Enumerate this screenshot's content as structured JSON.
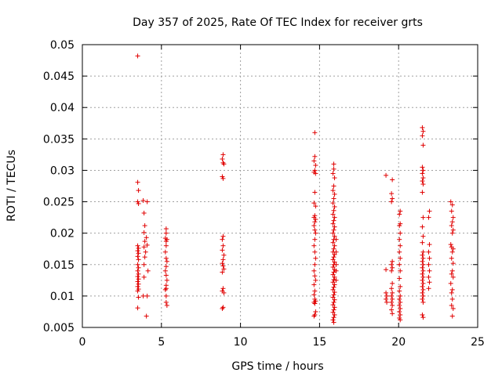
{
  "chart_data": {
    "type": "scatter",
    "title": "Day 357 of 2025, Rate Of TEC Index for receiver grts",
    "xlabel": "GPS time / hours",
    "ylabel": "ROTI / TECUs",
    "xlim": [
      0,
      25
    ],
    "ylim": [
      0.005,
      0.05
    ],
    "xticks": [
      "0",
      "5",
      "10",
      "15",
      "20",
      "25"
    ],
    "yticks": [
      "0.005",
      "0.01",
      "0.015",
      "0.02",
      "0.025",
      "0.03",
      "0.035",
      "0.04",
      "0.045",
      "0.05"
    ],
    "grid": true,
    "marker": "plus",
    "color": "#e00000",
    "series": [
      {
        "points": [
          [
            3.5,
            0.0482
          ],
          [
            3.5,
            0.0281
          ],
          [
            3.55,
            0.0268
          ],
          [
            3.5,
            0.025
          ],
          [
            3.55,
            0.0247
          ],
          [
            3.5,
            0.018
          ],
          [
            3.55,
            0.0176
          ],
          [
            3.5,
            0.0172
          ],
          [
            3.55,
            0.0168
          ],
          [
            3.5,
            0.0163
          ],
          [
            3.55,
            0.0158
          ],
          [
            3.5,
            0.015
          ],
          [
            3.55,
            0.0145
          ],
          [
            3.5,
            0.014
          ],
          [
            3.55,
            0.0135
          ],
          [
            3.5,
            0.0131
          ],
          [
            3.55,
            0.0127
          ],
          [
            3.5,
            0.0123
          ],
          [
            3.55,
            0.0119
          ],
          [
            3.5,
            0.0115
          ],
          [
            3.55,
            0.0111
          ],
          [
            3.5,
            0.0108
          ],
          [
            3.55,
            0.0098
          ],
          [
            3.5,
            0.0081
          ],
          [
            3.85,
            0.0252
          ],
          [
            4.1,
            0.025
          ],
          [
            3.9,
            0.0232
          ],
          [
            3.95,
            0.0212
          ],
          [
            3.9,
            0.0201
          ],
          [
            4.05,
            0.0193
          ],
          [
            3.95,
            0.0187
          ],
          [
            4.1,
            0.0181
          ],
          [
            3.9,
            0.0178
          ],
          [
            4.0,
            0.017
          ],
          [
            3.95,
            0.0162
          ],
          [
            3.9,
            0.015
          ],
          [
            4.15,
            0.014
          ],
          [
            3.9,
            0.013
          ],
          [
            3.85,
            0.01
          ],
          [
            4.1,
            0.01
          ],
          [
            4.05,
            0.0068
          ],
          [
            5.3,
            0.0207
          ],
          [
            5.3,
            0.02
          ],
          [
            5.25,
            0.0192
          ],
          [
            5.35,
            0.019
          ],
          [
            5.3,
            0.0187
          ],
          [
            5.3,
            0.018
          ],
          [
            5.25,
            0.017
          ],
          [
            5.3,
            0.016
          ],
          [
            5.35,
            0.0155
          ],
          [
            5.3,
            0.0147
          ],
          [
            5.25,
            0.014
          ],
          [
            5.3,
            0.0133
          ],
          [
            5.35,
            0.0125
          ],
          [
            5.3,
            0.0117
          ],
          [
            5.3,
            0.0112
          ],
          [
            5.25,
            0.011
          ],
          [
            5.3,
            0.01
          ],
          [
            5.3,
            0.009
          ],
          [
            5.35,
            0.0085
          ],
          [
            8.9,
            0.0325
          ],
          [
            8.85,
            0.0318
          ],
          [
            8.9,
            0.0312
          ],
          [
            8.95,
            0.031
          ],
          [
            8.85,
            0.029
          ],
          [
            8.9,
            0.0287
          ],
          [
            8.9,
            0.0195
          ],
          [
            8.85,
            0.019
          ],
          [
            8.9,
            0.018
          ],
          [
            8.85,
            0.0173
          ],
          [
            8.95,
            0.0165
          ],
          [
            8.9,
            0.0158
          ],
          [
            8.85,
            0.0152
          ],
          [
            8.9,
            0.0148
          ],
          [
            8.95,
            0.0143
          ],
          [
            8.85,
            0.0138
          ],
          [
            8.9,
            0.0112
          ],
          [
            8.85,
            0.0108
          ],
          [
            8.95,
            0.0105
          ],
          [
            8.9,
            0.0082
          ],
          [
            8.85,
            0.008
          ],
          [
            14.7,
            0.036
          ],
          [
            14.7,
            0.0322
          ],
          [
            14.65,
            0.0315
          ],
          [
            14.75,
            0.0308
          ],
          [
            14.7,
            0.03
          ],
          [
            14.65,
            0.0297
          ],
          [
            14.75,
            0.0295
          ],
          [
            14.7,
            0.0265
          ],
          [
            14.65,
            0.0248
          ],
          [
            14.75,
            0.0243
          ],
          [
            14.7,
            0.0228
          ],
          [
            14.65,
            0.0225
          ],
          [
            14.75,
            0.0222
          ],
          [
            14.7,
            0.0218
          ],
          [
            14.65,
            0.0212
          ],
          [
            14.7,
            0.0205
          ],
          [
            14.75,
            0.02
          ],
          [
            14.7,
            0.019
          ],
          [
            14.65,
            0.018
          ],
          [
            14.7,
            0.017
          ],
          [
            14.75,
            0.016
          ],
          [
            14.7,
            0.015
          ],
          [
            14.65,
            0.014
          ],
          [
            14.7,
            0.0132
          ],
          [
            14.75,
            0.0125
          ],
          [
            14.65,
            0.0118
          ],
          [
            14.7,
            0.0108
          ],
          [
            14.65,
            0.0102
          ],
          [
            14.7,
            0.0095
          ],
          [
            14.75,
            0.0092
          ],
          [
            14.65,
            0.009
          ],
          [
            14.7,
            0.0088
          ],
          [
            14.75,
            0.0075
          ],
          [
            14.7,
            0.007
          ],
          [
            14.65,
            0.0068
          ],
          [
            15.9,
            0.031
          ],
          [
            15.9,
            0.0302
          ],
          [
            15.85,
            0.0295
          ],
          [
            15.95,
            0.0288
          ],
          [
            15.9,
            0.0275
          ],
          [
            15.85,
            0.0268
          ],
          [
            15.95,
            0.0262
          ],
          [
            15.9,
            0.0255
          ],
          [
            15.85,
            0.0248
          ],
          [
            15.95,
            0.0242
          ],
          [
            15.9,
            0.0236
          ],
          [
            15.85,
            0.023
          ],
          [
            15.95,
            0.0225
          ],
          [
            15.9,
            0.022
          ],
          [
            15.85,
            0.0215
          ],
          [
            15.95,
            0.021
          ],
          [
            15.9,
            0.0205
          ],
          [
            15.85,
            0.02
          ],
          [
            15.95,
            0.0195
          ],
          [
            15.9,
            0.019
          ],
          [
            15.85,
            0.0185
          ],
          [
            15.95,
            0.018
          ],
          [
            15.9,
            0.0175
          ],
          [
            15.85,
            0.017
          ],
          [
            15.95,
            0.0166
          ],
          [
            15.9,
            0.0162
          ],
          [
            15.85,
            0.0158
          ],
          [
            15.95,
            0.0154
          ],
          [
            15.9,
            0.015
          ],
          [
            15.85,
            0.0146
          ],
          [
            15.95,
            0.0142
          ],
          [
            15.9,
            0.0138
          ],
          [
            15.85,
            0.0134
          ],
          [
            15.95,
            0.013
          ],
          [
            15.9,
            0.0126
          ],
          [
            15.85,
            0.0122
          ],
          [
            15.95,
            0.0118
          ],
          [
            15.9,
            0.0114
          ],
          [
            15.85,
            0.011
          ],
          [
            15.95,
            0.0106
          ],
          [
            15.9,
            0.0102
          ],
          [
            15.85,
            0.0098
          ],
          [
            15.95,
            0.0094
          ],
          [
            15.9,
            0.009
          ],
          [
            15.85,
            0.0086
          ],
          [
            15.95,
            0.0082
          ],
          [
            15.9,
            0.0078
          ],
          [
            15.85,
            0.0074
          ],
          [
            15.95,
            0.007
          ],
          [
            15.9,
            0.0066
          ],
          [
            15.85,
            0.0062
          ],
          [
            15.9,
            0.0058
          ],
          [
            16.05,
            0.019
          ],
          [
            16.05,
            0.017
          ],
          [
            16.05,
            0.015
          ],
          [
            16.05,
            0.014
          ],
          [
            16.05,
            0.0125
          ],
          [
            19.2,
            0.0292
          ],
          [
            19.2,
            0.0142
          ],
          [
            19.2,
            0.0105
          ],
          [
            19.25,
            0.01
          ],
          [
            19.2,
            0.0095
          ],
          [
            19.25,
            0.009
          ],
          [
            19.6,
            0.0285
          ],
          [
            19.55,
            0.0263
          ],
          [
            19.6,
            0.0255
          ],
          [
            19.55,
            0.025
          ],
          [
            19.6,
            0.0155
          ],
          [
            19.55,
            0.015
          ],
          [
            19.6,
            0.0145
          ],
          [
            19.55,
            0.014
          ],
          [
            19.6,
            0.012
          ],
          [
            19.55,
            0.0112
          ],
          [
            19.6,
            0.0105
          ],
          [
            19.55,
            0.01
          ],
          [
            19.6,
            0.0095
          ],
          [
            19.55,
            0.009
          ],
          [
            19.6,
            0.0085
          ],
          [
            19.55,
            0.0078
          ],
          [
            19.6,
            0.0072
          ],
          [
            20.1,
            0.0235
          ],
          [
            20.05,
            0.023
          ],
          [
            20.1,
            0.0215
          ],
          [
            20.05,
            0.0212
          ],
          [
            20.1,
            0.02
          ],
          [
            20.05,
            0.019
          ],
          [
            20.1,
            0.018
          ],
          [
            20.05,
            0.017
          ],
          [
            20.1,
            0.016
          ],
          [
            20.05,
            0.015
          ],
          [
            20.1,
            0.014
          ],
          [
            20.05,
            0.0128
          ],
          [
            20.1,
            0.0115
          ],
          [
            20.05,
            0.0108
          ],
          [
            20.1,
            0.01
          ],
          [
            20.05,
            0.0095
          ],
          [
            20.1,
            0.009
          ],
          [
            20.05,
            0.0085
          ],
          [
            20.1,
            0.008
          ],
          [
            20.05,
            0.0075
          ],
          [
            20.1,
            0.007
          ],
          [
            20.05,
            0.0065
          ],
          [
            20.1,
            0.0062
          ],
          [
            21.5,
            0.0368
          ],
          [
            21.55,
            0.0362
          ],
          [
            21.5,
            0.0355
          ],
          [
            21.55,
            0.034
          ],
          [
            21.5,
            0.0305
          ],
          [
            21.55,
            0.03
          ],
          [
            21.5,
            0.0295
          ],
          [
            21.55,
            0.0288
          ],
          [
            21.5,
            0.0283
          ],
          [
            21.55,
            0.0278
          ],
          [
            21.5,
            0.0265
          ],
          [
            21.55,
            0.0225
          ],
          [
            21.5,
            0.021
          ],
          [
            21.55,
            0.0195
          ],
          [
            21.5,
            0.0185
          ],
          [
            21.55,
            0.017
          ],
          [
            21.5,
            0.0165
          ],
          [
            21.55,
            0.016
          ],
          [
            21.5,
            0.0155
          ],
          [
            21.55,
            0.015
          ],
          [
            21.5,
            0.0145
          ],
          [
            21.55,
            0.014
          ],
          [
            21.5,
            0.0135
          ],
          [
            21.55,
            0.013
          ],
          [
            21.5,
            0.0125
          ],
          [
            21.55,
            0.012
          ],
          [
            21.5,
            0.0115
          ],
          [
            21.55,
            0.011
          ],
          [
            21.5,
            0.0105
          ],
          [
            21.55,
            0.01
          ],
          [
            21.5,
            0.0095
          ],
          [
            21.55,
            0.009
          ],
          [
            21.5,
            0.007
          ],
          [
            21.55,
            0.0066
          ],
          [
            21.95,
            0.0235
          ],
          [
            21.9,
            0.0225
          ],
          [
            21.95,
            0.0182
          ],
          [
            21.9,
            0.017
          ],
          [
            21.95,
            0.016
          ],
          [
            21.9,
            0.015
          ],
          [
            21.95,
            0.014
          ],
          [
            21.9,
            0.013
          ],
          [
            21.95,
            0.0122
          ],
          [
            21.9,
            0.0112
          ],
          [
            23.3,
            0.025
          ],
          [
            23.4,
            0.0245
          ],
          [
            23.35,
            0.0235
          ],
          [
            23.45,
            0.0225
          ],
          [
            23.4,
            0.0218
          ],
          [
            23.35,
            0.0212
          ],
          [
            23.45,
            0.0205
          ],
          [
            23.4,
            0.02
          ],
          [
            23.3,
            0.0182
          ],
          [
            23.35,
            0.0178
          ],
          [
            23.45,
            0.0175
          ],
          [
            23.4,
            0.017
          ],
          [
            23.35,
            0.016
          ],
          [
            23.45,
            0.0152
          ],
          [
            23.4,
            0.014
          ],
          [
            23.35,
            0.0135
          ],
          [
            23.45,
            0.013
          ],
          [
            23.3,
            0.012
          ],
          [
            23.4,
            0.011
          ],
          [
            23.35,
            0.0105
          ],
          [
            23.4,
            0.0095
          ],
          [
            23.35,
            0.0085
          ],
          [
            23.45,
            0.008
          ],
          [
            23.4,
            0.0068
          ]
        ]
      }
    ]
  }
}
